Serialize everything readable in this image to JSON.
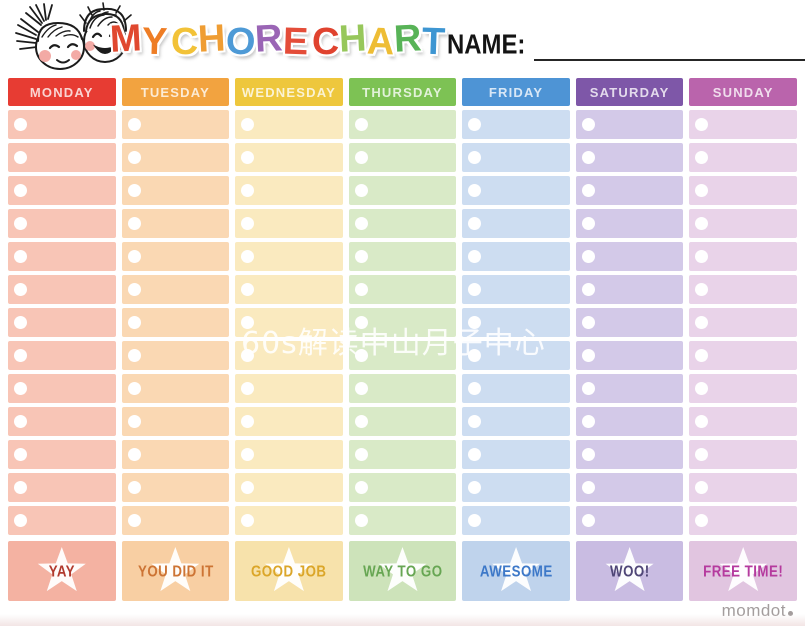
{
  "header": {
    "title_letters": [
      {
        "ch": "M",
        "color": "#e0482f"
      },
      {
        "ch": "Y",
        "color": "#ee7d25"
      },
      {
        "ch": " "
      },
      {
        "ch": "C",
        "color": "#f2c238"
      },
      {
        "ch": "H",
        "color": "#ef9d33"
      },
      {
        "ch": "O",
        "color": "#4e9ad6"
      },
      {
        "ch": "R",
        "color": "#9a65b5"
      },
      {
        "ch": "E",
        "color": "#e44d39"
      },
      {
        "ch": " "
      },
      {
        "ch": "C",
        "color": "#e0432f"
      },
      {
        "ch": "H",
        "color": "#97c75b"
      },
      {
        "ch": "A",
        "color": "#eebd35"
      },
      {
        "ch": "R",
        "color": "#58b357"
      },
      {
        "ch": "T",
        "color": "#3e96d2"
      }
    ],
    "title_text": "MY CHORE CHART",
    "name_label": "NAME:",
    "name_value": ""
  },
  "grid": {
    "rows": 13
  },
  "days": [
    {
      "label": "MONDAY",
      "header_bg": "#e73c33",
      "cell_bg": "#f8c5b6",
      "footer_bg": "#f4b2a2",
      "footer_label": "YAY",
      "footer_label_color": "#b13a2e"
    },
    {
      "label": "TUESDAY",
      "header_bg": "#f2a340",
      "cell_bg": "#fad8b3",
      "footer_bg": "#f8cfa3",
      "footer_label": "YOU DID IT",
      "footer_label_color": "#cd7434"
    },
    {
      "label": "WEDNESDAY",
      "header_bg": "#eec73d",
      "cell_bg": "#faeabf",
      "footer_bg": "#f7e2ab",
      "footer_label": "GOOD JOB",
      "footer_label_color": "#dba629"
    },
    {
      "label": "THURSDAY",
      "header_bg": "#7dc254",
      "cell_bg": "#d9eac7",
      "footer_bg": "#cde3ba",
      "footer_label": "WAY TO GO",
      "footer_label_color": "#67a653"
    },
    {
      "label": "FRIDAY",
      "header_bg": "#4e94d5",
      "cell_bg": "#cdddf1",
      "footer_bg": "#bfd3ec",
      "footer_label": "AWESOME",
      "footer_label_color": "#3d78c8"
    },
    {
      "label": "SATURDAY",
      "header_bg": "#7e57a8",
      "cell_bg": "#d3c9e8",
      "footer_bg": "#c9bce2",
      "footer_label": "WOO!",
      "footer_label_color": "#4f4677"
    },
    {
      "label": "SUNDAY",
      "header_bg": "#ba64ac",
      "cell_bg": "#e9d3e9",
      "footer_bg": "#e1c5e0",
      "footer_label": "FREE TIME!",
      "footer_label_color": "#b53a9e"
    }
  ],
  "watermark": {
    "text": "60s解读中山月子中心"
  },
  "branding": {
    "logo_text": "momdot"
  }
}
